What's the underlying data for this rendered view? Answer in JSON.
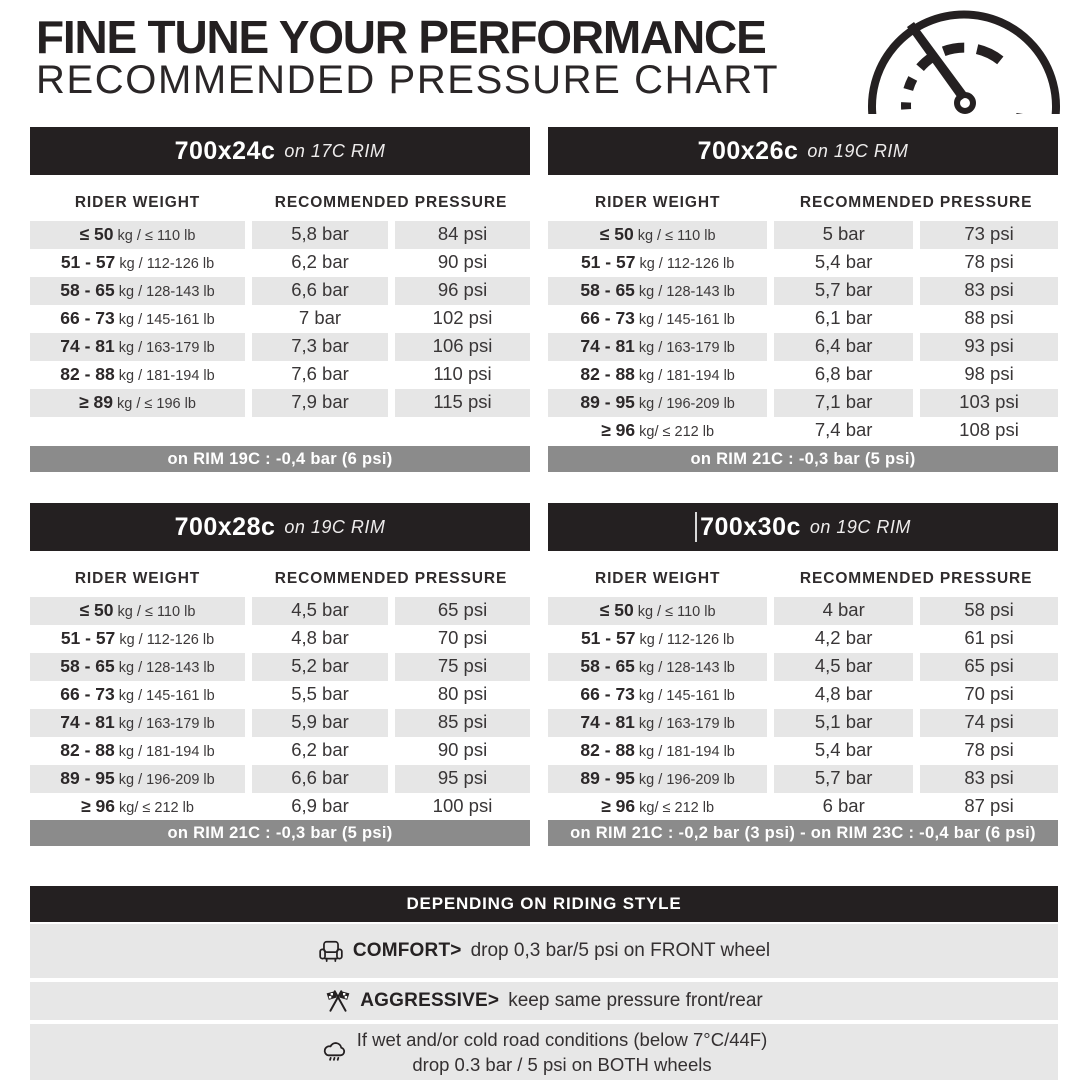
{
  "header": {
    "title": "FINE TUNE YOUR PERFORMANCE",
    "subtitle": "RECOMMENDED PRESSURE CHART",
    "gauge_icon": "gauge-icon"
  },
  "labels": {
    "rider_weight": "RIDER WEIGHT",
    "recommended_pressure": "RECOMMENDED PRESSURE"
  },
  "colors": {
    "black_bar": "#242021",
    "row_stripe": "#e6e6e6",
    "footnote_bar": "#8b8b8b",
    "background": "#ffffff"
  },
  "tables": [
    {
      "size": "700x24c",
      "rim": "on 17C RIM",
      "footnote": "on RIM 19C : -0,4 bar (6 psi)",
      "rows": [
        {
          "w_bold": "≤ 50",
          "w_rest": "kg / ≤ 110 lb",
          "bar": "5,8 bar",
          "psi": "84 psi"
        },
        {
          "w_bold": "51 - 57",
          "w_rest": "kg / 112-126 lb",
          "bar": "6,2 bar",
          "psi": "90 psi"
        },
        {
          "w_bold": "58 - 65",
          "w_rest": "kg / 128-143 lb",
          "bar": "6,6 bar",
          "psi": "96 psi"
        },
        {
          "w_bold": "66 - 73",
          "w_rest": "kg / 145-161 lb",
          "bar": "7 bar",
          "psi": "102 psi"
        },
        {
          "w_bold": "74 - 81",
          "w_rest": "kg / 163-179 lb",
          "bar": "7,3 bar",
          "psi": "106 psi"
        },
        {
          "w_bold": "82 - 88",
          "w_rest": "kg / 181-194 lb",
          "bar": "7,6 bar",
          "psi": "110 psi"
        },
        {
          "w_bold": "≥ 89",
          "w_rest": "kg / ≤ 196 lb",
          "bar": "7,9 bar",
          "psi": "115 psi"
        }
      ]
    },
    {
      "size": "700x26c",
      "rim": "on 19C RIM",
      "footnote": "on RIM 21C : -0,3 bar (5 psi)",
      "rows": [
        {
          "w_bold": "≤ 50",
          "w_rest": "kg / ≤ 110 lb",
          "bar": "5 bar",
          "psi": "73 psi"
        },
        {
          "w_bold": "51 - 57",
          "w_rest": "kg / 112-126 lb",
          "bar": "5,4 bar",
          "psi": "78 psi"
        },
        {
          "w_bold": "58 - 65",
          "w_rest": "kg / 128-143 lb",
          "bar": "5,7 bar",
          "psi": "83 psi"
        },
        {
          "w_bold": "66 - 73",
          "w_rest": "kg / 145-161 lb",
          "bar": "6,1 bar",
          "psi": "88 psi"
        },
        {
          "w_bold": "74 - 81",
          "w_rest": "kg / 163-179 lb",
          "bar": "6,4 bar",
          "psi": "93 psi"
        },
        {
          "w_bold": "82 - 88",
          "w_rest": "kg / 181-194 lb",
          "bar": "6,8 bar",
          "psi": "98 psi"
        },
        {
          "w_bold": "89 - 95",
          "w_rest": "kg / 196-209 lb",
          "bar": "7,1 bar",
          "psi": "103 psi"
        },
        {
          "w_bold": "≥ 96",
          "w_rest": "kg/ ≤ 212 lb",
          "bar": "7,4 bar",
          "psi": "108 psi"
        }
      ]
    },
    {
      "size": "700x28c",
      "rim": "on 19C RIM",
      "footnote": "on RIM 21C : -0,3 bar (5 psi)",
      "rows": [
        {
          "w_bold": "≤ 50",
          "w_rest": "kg / ≤ 110 lb",
          "bar": "4,5 bar",
          "psi": "65 psi"
        },
        {
          "w_bold": "51 - 57",
          "w_rest": "kg / 112-126 lb",
          "bar": "4,8 bar",
          "psi": "70 psi"
        },
        {
          "w_bold": "58 - 65",
          "w_rest": "kg / 128-143 lb",
          "bar": "5,2 bar",
          "psi": "75 psi"
        },
        {
          "w_bold": "66 - 73",
          "w_rest": "kg / 145-161 lb",
          "bar": "5,5 bar",
          "psi": "80 psi"
        },
        {
          "w_bold": "74 - 81",
          "w_rest": "kg / 163-179 lb",
          "bar": "5,9 bar",
          "psi": "85 psi"
        },
        {
          "w_bold": "82 - 88",
          "w_rest": "kg / 181-194 lb",
          "bar": "6,2 bar",
          "psi": "90 psi"
        },
        {
          "w_bold": "89 - 95",
          "w_rest": "kg / 196-209 lb",
          "bar": "6,6 bar",
          "psi": "95 psi"
        },
        {
          "w_bold": "≥ 96",
          "w_rest": "kg/ ≤ 212 lb",
          "bar": "6,9 bar",
          "psi": "100 psi"
        }
      ]
    },
    {
      "size": "700x30c",
      "rim": "on 19C RIM",
      "footnote": "on RIM 21C : -0,2 bar (3 psi) - on RIM 23C : -0,4 bar (6 psi)",
      "rows": [
        {
          "w_bold": "≤ 50",
          "w_rest": "kg / ≤ 110 lb",
          "bar": "4 bar",
          "psi": "58 psi"
        },
        {
          "w_bold": "51 - 57",
          "w_rest": "kg / 112-126 lb",
          "bar": "4,2 bar",
          "psi": "61 psi"
        },
        {
          "w_bold": "58 - 65",
          "w_rest": "kg / 128-143 lb",
          "bar": "4,5 bar",
          "psi": "65 psi"
        },
        {
          "w_bold": "66 - 73",
          "w_rest": "kg / 145-161 lb",
          "bar": "4,8 bar",
          "psi": "70 psi"
        },
        {
          "w_bold": "74 - 81",
          "w_rest": "kg / 163-179 lb",
          "bar": "5,1 bar",
          "psi": "74 psi"
        },
        {
          "w_bold": "82 - 88",
          "w_rest": "kg / 181-194 lb",
          "bar": "5,4 bar",
          "psi": "78 psi"
        },
        {
          "w_bold": "89 - 95",
          "w_rest": "kg / 196-209 lb",
          "bar": "5,7 bar",
          "psi": "83 psi"
        },
        {
          "w_bold": "≥ 96",
          "w_rest": "kg/ ≤ 212 lb",
          "bar": "6 bar",
          "psi": "87 psi"
        }
      ]
    }
  ],
  "riding_style": {
    "title": "DEPENDING ON RIDING STYLE",
    "items": [
      {
        "icon": "armchair-icon",
        "bold": "COMFORT>",
        "text": "drop 0,3 bar/5 psi on FRONT wheel"
      },
      {
        "icon": "checkered-flag-icon",
        "bold": "AGGRESSIVE>",
        "text": "keep same pressure front/rear"
      },
      {
        "icon": "rain-cloud-icon",
        "line1": "If wet and/or cold road conditions (below 7°C/44F)",
        "line2": "drop 0.3 bar / 5 psi on BOTH wheels"
      }
    ]
  }
}
